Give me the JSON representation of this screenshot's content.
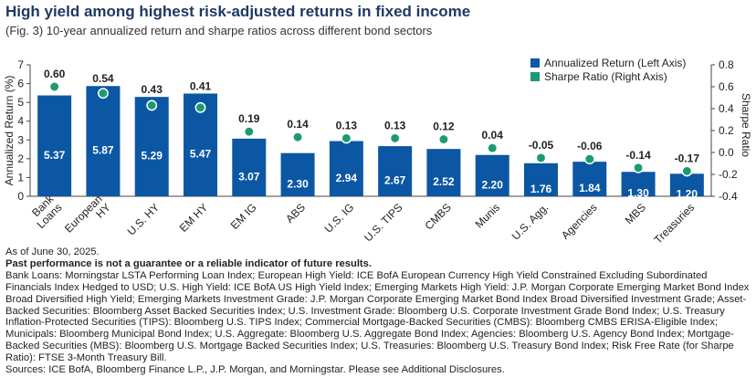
{
  "title": "High yield among highest risk-adjusted returns in fixed income",
  "subtitle": "(Fig. 3) 10-year annualized return and sharpe ratios across different bond sectors",
  "chart_data": {
    "type": "bar",
    "categories": [
      "Bank\nLoans",
      "European\nHY",
      "U.S. HY",
      "EM HY",
      "EM IG",
      "ABS",
      "U.S. IG",
      "U.S. TIPS",
      "CMBS",
      "Munis",
      "U.S. Agg.",
      "Agencies",
      "MBS",
      "Treasuries"
    ],
    "series": [
      {
        "name": "Annualized Return (Left Axis)",
        "axis": "left",
        "mark": "bar",
        "color": "#0b57a4",
        "values": [
          5.37,
          5.87,
          5.29,
          5.47,
          3.07,
          2.3,
          2.94,
          2.67,
          2.52,
          2.2,
          1.76,
          1.84,
          1.3,
          1.2
        ],
        "labels": [
          "5.37",
          "5.87",
          "5.29",
          "5.47",
          "3.07",
          "2.30",
          "2.94",
          "2.67",
          "2.52",
          "2.20",
          "1.76",
          "1.84",
          "1.30",
          "1.20"
        ]
      },
      {
        "name": "Sharpe Ratio (Right Axis)",
        "axis": "right",
        "mark": "dot",
        "color": "#1e9a72",
        "values": [
          0.6,
          0.54,
          0.43,
          0.41,
          0.19,
          0.14,
          0.13,
          0.13,
          0.12,
          0.04,
          -0.05,
          -0.06,
          -0.14,
          -0.17
        ],
        "labels": [
          "0.60",
          "0.54",
          "0.43",
          "0.41",
          "0.19",
          "0.14",
          "0.13",
          "0.13",
          "0.12",
          "0.04",
          "-0.05",
          "-0.06",
          "-0.14",
          "-0.17"
        ]
      }
    ],
    "ylabel": "Annualized Return (%)",
    "y2label": "Sharpe Ratio",
    "ylim": [
      0,
      7
    ],
    "y2lim": [
      -0.4,
      0.8
    ],
    "yticks": [
      0,
      1,
      2,
      3,
      4,
      5,
      6,
      7
    ],
    "y2ticks": [
      "0.8",
      "0.6",
      "0.4",
      "0.2",
      "0.0",
      "-0.2",
      "-0.4"
    ],
    "y2tick_values": [
      0.8,
      0.6,
      0.4,
      0.2,
      0.0,
      -0.2,
      -0.4
    ],
    "grid": false,
    "legend": "top-right"
  },
  "notes": {
    "as_of": "As of June 30, 2025.",
    "disclaimer": "Past performance is not a guarantee or a reliable indicator of future results.",
    "definitions": "Bank Loans: Morningstar LSTA Performing Loan Index; European High Yield: ICE BofA European Currency High Yield Constrained Excluding Subordinated Financials Index Hedged to USD; U.S. High Yield: ICE BofA US High Yield Index; Emerging Markets High Yield: J.P. Morgan Corporate Emerging Market Bond Index Broad Diversified High Yield; Emerging Markets Investment Grade: J.P. Morgan Corporate Emerging Market Bond Index Broad Diversified Investment Grade; Asset-Backed Securities: Bloomberg Asset Backed Securities Index; U.S. Investment Grade: Bloomberg U.S. Corporate Investment Grade Bond Index; U.S. Treasury Inflation-Protected Securities (TIPS): Bloomberg U.S. TIPS Index; Commercial Mortgage-Backed Securities (CMBS): Bloomberg CMBS ERISA-Eligible Index; Municipals: Bloomberg Municipal Bond Index; U.S. Aggregate: Bloomberg U.S. Aggregate Bond Index; Agencies: Bloomberg U.S. Agency Bond Index; Mortgage-Backed Securities (MBS): Bloomberg U.S. Mortgage Backed Securities Index; U.S. Treasuries: Bloomberg U.S. Treasury Bond Index; Risk Free Rate (for Sharpe Ratio): FTSE 3-Month Treasury Bill.",
    "sources": "Sources: ICE BofA, Bloomberg Finance L.P., J.P. Morgan, and Morningstar. Please see Additional Disclosures."
  }
}
